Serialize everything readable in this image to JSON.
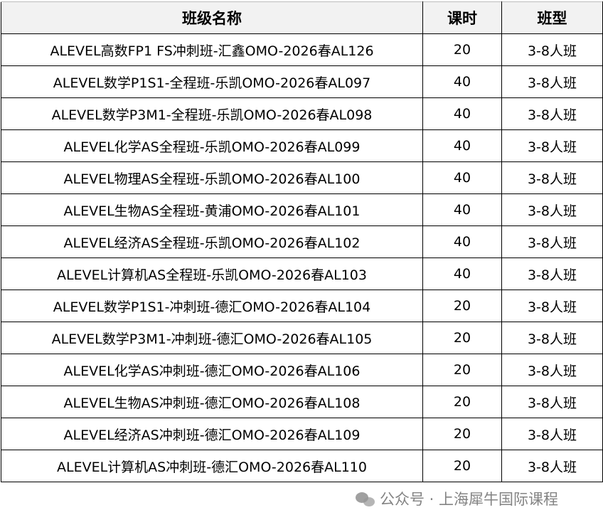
{
  "table": {
    "headers": [
      "班级名称",
      "课时",
      "班型"
    ],
    "rows": [
      [
        "ALEVEL高数FP1 FS冲刺班-汇鑫OMO-2026春AL126",
        "20",
        "3-8人班"
      ],
      [
        "ALEVEL数学P1S1-全程班-乐凯OMO-2026春AL097",
        "40",
        "3-8人班"
      ],
      [
        "ALEVEL数学P3M1-全程班-乐凯OMO-2026春AL098",
        "40",
        "3-8人班"
      ],
      [
        "ALEVEL化学AS全程班-乐凯OMO-2026春AL099",
        "40",
        "3-8人班"
      ],
      [
        "ALEVEL物理AS全程班-乐凯OMO-2026春AL100",
        "40",
        "3-8人班"
      ],
      [
        "ALEVEL生物AS全程班-黄浦OMO-2026春AL101",
        "40",
        "3-8人班"
      ],
      [
        "ALEVEL经济AS全程班-乐凯OMO-2026春AL102",
        "40",
        "3-8人班"
      ],
      [
        "ALEVEL计算机AS全程班-乐凯OMO-2026春AL103",
        "40",
        "3-8人班"
      ],
      [
        "ALEVEL数学P1S1-冲刺班-德汇OMO-2026春AL104",
        "20",
        "3-8人班"
      ],
      [
        "ALEVEL数学P3M1-冲刺班-德汇OMO-2026春AL105",
        "20",
        "3-8人班"
      ],
      [
        "ALEVEL化学AS冲刺班-德汇OMO-2026春AL106",
        "20",
        "3-8人班"
      ],
      [
        "ALEVEL生物AS冲刺班-德汇OMO-2026春AL108",
        "20",
        "3-8人班"
      ],
      [
        "ALEVEL经济AS冲刺班-德汇OMO-2026春AL109",
        "20",
        "3-8人班"
      ],
      [
        "ALEVEL计算机AS冲刺班-德汇OMO-2026春AL110",
        "20",
        "3-8人班"
      ]
    ]
  },
  "watermark": {
    "icon": "wechat-icon",
    "text": "公众号 · 上海犀牛国际课程"
  },
  "colors": {
    "header_bg": "#f2f2f2",
    "border": "#000000"
  }
}
